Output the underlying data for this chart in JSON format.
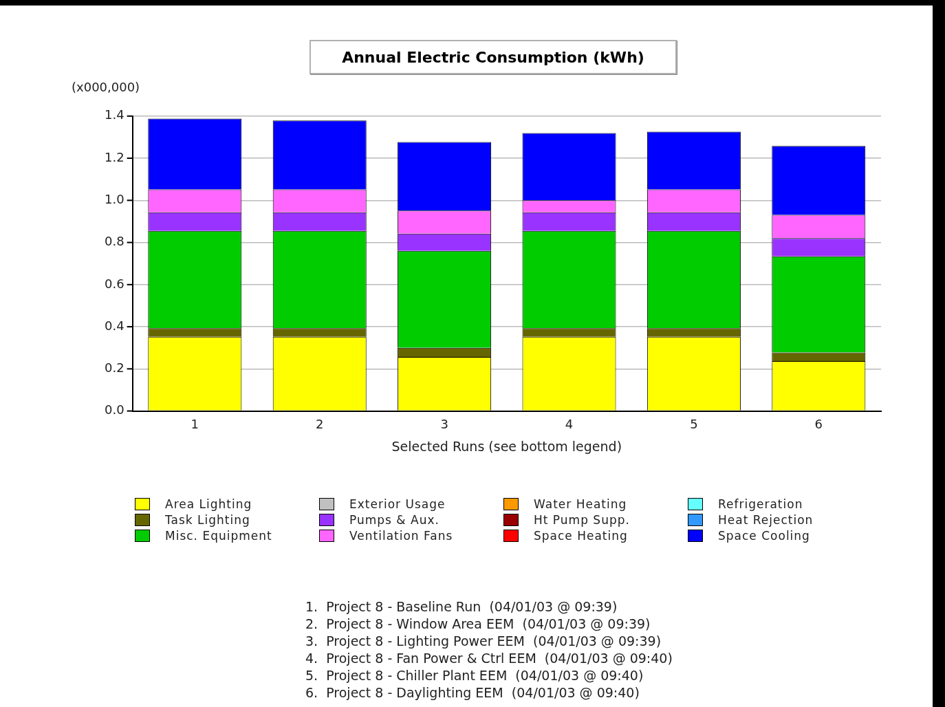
{
  "chart_data": {
    "type": "bar",
    "title": "Annual Electric Consumption (kWh)",
    "xlabel": "Selected Runs (see bottom legend)",
    "stacked": true,
    "grid": "y",
    "legend": "bottom",
    "categories": [
      "1",
      "2",
      "3",
      "4",
      "5",
      "6"
    ],
    "ylim": [
      0,
      1.4
    ],
    "yticks": [
      {
        "value": 0,
        "label": "0.0"
      },
      0.2,
      0.4,
      0.6,
      0.8,
      {
        "value": 1,
        "label": "1.0"
      },
      1.2,
      1.4
    ],
    "series": [
      {
        "name": "Area Lighting",
        "color": "#ffff00",
        "values": [
          0.352,
          0.352,
          0.257,
          0.352,
          0.352,
          0.237
        ]
      },
      {
        "name": "Task Lighting",
        "color": "#666600",
        "values": [
          0.041,
          0.041,
          0.043,
          0.041,
          0.041,
          0.041
        ]
      },
      {
        "name": "Misc. Equipment",
        "color": "#00cc00",
        "values": [
          0.462,
          0.462,
          0.46,
          0.462,
          0.462,
          0.456
        ]
      },
      {
        "name": "Exterior Usage",
        "color": "#c0c0c0",
        "values": [
          0,
          0,
          0,
          0,
          0,
          0
        ]
      },
      {
        "name": "Pumps & Aux.",
        "color": "#9933ff",
        "values": [
          0.088,
          0.088,
          0.082,
          0.088,
          0.088,
          0.087
        ]
      },
      {
        "name": "Ventilation Fans",
        "color": "#ff66ff",
        "values": [
          0.109,
          0.109,
          0.109,
          0.057,
          0.109,
          0.11
        ]
      },
      {
        "name": "Water Heating",
        "color": "#ff9900",
        "values": [
          0,
          0,
          0,
          0,
          0,
          0
        ]
      },
      {
        "name": "Ht Pump Supp.",
        "color": "#990000",
        "values": [
          0,
          0,
          0,
          0,
          0,
          0
        ]
      },
      {
        "name": "Space Heating",
        "color": "#ff0000",
        "values": [
          0,
          0,
          0,
          0,
          0,
          0
        ]
      },
      {
        "name": "Refrigeration",
        "color": "#66ffff",
        "values": [
          0,
          0,
          0,
          0,
          0,
          0
        ]
      },
      {
        "name": "Heat Rejection",
        "color": "#3399ff",
        "values": [
          0,
          0,
          0,
          0,
          0,
          0
        ]
      },
      {
        "name": "Space Cooling",
        "color": "#0000ff",
        "values": [
          0.336,
          0.327,
          0.326,
          0.319,
          0.274,
          0.327
        ]
      }
    ],
    "annotations": [
      "(x000,000)",
      "1.  Project 8 - Baseline Run  (04/01/03 @ 09:39)",
      "2.  Project 8 - Window Area EEM  (04/01/03 @ 09:39)",
      "3.  Project 8 - Lighting Power EEM  (04/01/03 @ 09:39)",
      "4.  Project 8 - Fan Power & Ctrl EEM  (04/01/03 @ 09:40)",
      "5.  Project 8 - Chiller Plant EEM  (04/01/03 @ 09:40)",
      "6.  Project 8 - Daylighting EEM  (04/01/03 @ 09:40)"
    ]
  }
}
